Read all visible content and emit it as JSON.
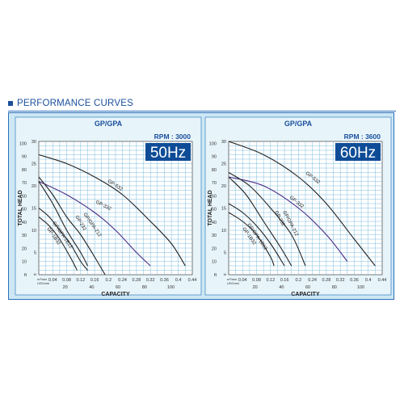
{
  "header": {
    "title": "PERFORMANCE CURVES"
  },
  "colors": {
    "accent": "#1a4f9c",
    "panel_bg": "#cde8f4",
    "hz_box": "#0f4c97",
    "grid": "#6fb6da",
    "curve_dark": "#222222",
    "curve_purple": "#4b2d86"
  },
  "chart_data": [
    {
      "type": "line",
      "title": "GP/GPA",
      "rpm_label": "RPM : 3000",
      "frequency": "50Hz",
      "xlabel": "CAPACITY",
      "ylabel": "TOTAL HEAD",
      "x_unit_label": "m³/min",
      "x2_unit_label": "USGmin",
      "y_unit_label": "M",
      "y2_unit_label": "ft",
      "xlim": [
        0,
        0.44
      ],
      "ylim": [
        0,
        30
      ],
      "x_ticks": [
        "0.04",
        "0.08",
        "0.12",
        "0.16",
        "0.2",
        "0.24",
        "0.28",
        "0.32",
        "0.36",
        "0.4",
        "0.44"
      ],
      "x2_ticks": [
        "20",
        "40",
        "60",
        "80",
        "100"
      ],
      "y_ticks": [
        "5",
        "10",
        "15",
        "20",
        "25",
        "30"
      ],
      "y2_ticks": [
        "10",
        "20",
        "30",
        "40",
        "50",
        "60",
        "70",
        "80",
        "90",
        "100"
      ],
      "grid": true,
      "series": [
        {
          "name": "GP-532",
          "x": [
            0,
            0.08,
            0.16,
            0.24,
            0.32,
            0.38,
            0.42
          ],
          "y": [
            27,
            25,
            22,
            18,
            12,
            7,
            2
          ]
        },
        {
          "name": "GP-332",
          "x": [
            0,
            0.08,
            0.16,
            0.22,
            0.28,
            0.32
          ],
          "y": [
            21,
            18,
            14,
            10,
            5,
            2
          ]
        },
        {
          "name": "GP/GPA-212",
          "x": [
            0,
            0.04,
            0.08,
            0.12,
            0.16,
            0.19
          ],
          "y": [
            22,
            18,
            13,
            9,
            4,
            0
          ]
        },
        {
          "name": "GP-232",
          "x": [
            0,
            0.04,
            0.08,
            0.12,
            0.14
          ],
          "y": [
            21,
            16,
            10,
            5,
            2
          ]
        },
        {
          "name": "GP/GPA-1B12",
          "x": [
            0,
            0.03,
            0.06,
            0.09,
            0.12,
            0.14
          ],
          "y": [
            15,
            13,
            10,
            7,
            3,
            1
          ]
        },
        {
          "name": "GP-1B32",
          "x": [
            0,
            0.03,
            0.06,
            0.09,
            0.11
          ],
          "y": [
            13,
            11,
            8,
            4,
            1
          ]
        }
      ]
    },
    {
      "type": "line",
      "title": "GP/GPA",
      "rpm_label": "RPM : 3600",
      "frequency": "60Hz",
      "xlabel": "CAPACITY",
      "ylabel": "TOTAL HEAD",
      "x_unit_label": "m³/min",
      "x2_unit_label": "USGmin",
      "y_unit_label": "M",
      "y2_unit_label": "ft",
      "xlim": [
        0,
        0.44
      ],
      "ylim": [
        0,
        30
      ],
      "x_ticks": [
        "0.04",
        "0.08",
        "0.12",
        "0.16",
        "0.2",
        "0.24",
        "0.28",
        "0.32",
        "0.36",
        "0.4",
        "0.44"
      ],
      "x2_ticks": [
        "20",
        "40",
        "60",
        "80",
        "100"
      ],
      "y_ticks": [
        "5",
        "10",
        "15",
        "20",
        "25",
        "30"
      ],
      "y2_ticks": [
        "10",
        "20",
        "30",
        "40",
        "50",
        "60",
        "70",
        "80",
        "90",
        "100"
      ],
      "grid": true,
      "series": [
        {
          "name": "GP-532",
          "x": [
            0,
            0.1,
            0.2,
            0.28,
            0.36,
            0.42
          ],
          "y": [
            30,
            27,
            22,
            16,
            8,
            2
          ]
        },
        {
          "name": "GP-332",
          "x": [
            0,
            0.1,
            0.2,
            0.28,
            0.34
          ],
          "y": [
            22,
            20,
            15,
            9,
            3
          ]
        },
        {
          "name": "GP/GPA-212",
          "x": [
            0,
            0.06,
            0.12,
            0.18,
            0.22
          ],
          "y": [
            23,
            20,
            15,
            9,
            2
          ]
        },
        {
          "name": "GP-232",
          "x": [
            0,
            0.05,
            0.1,
            0.15,
            0.18
          ],
          "y": [
            22,
            18,
            12,
            6,
            2
          ]
        },
        {
          "name": "GP/GPA-1B12",
          "x": [
            0,
            0.04,
            0.08,
            0.12,
            0.16
          ],
          "y": [
            16,
            14,
            11,
            7,
            2
          ]
        },
        {
          "name": "GP-1B32",
          "x": [
            0,
            0.04,
            0.08,
            0.12,
            0.13
          ],
          "y": [
            14,
            12,
            9,
            4,
            2
          ]
        }
      ]
    }
  ]
}
